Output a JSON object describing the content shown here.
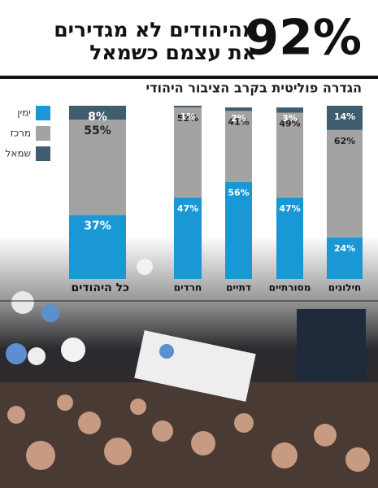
{
  "chart_data": {
    "type": "bar",
    "stacked": true,
    "title_figure": "92%",
    "title_lines": [
      "מהיהודים לא מגדירים",
      "את עצמם כשמאל"
    ],
    "subtitle": "הגדרה פוליטית בקרב הציבור היהודי",
    "categories": [
      "כל היהודים",
      "חרדים",
      "דתיים",
      "מסורתיים",
      "חילונים"
    ],
    "ylim": [
      0,
      100
    ],
    "series": [
      {
        "name": "ימין",
        "color": "#1a98d5",
        "values": [
          37,
          47,
          56,
          47,
          24
        ],
        "value_labels": [
          "37%",
          "47%",
          "56%",
          "47%",
          "24%"
        ]
      },
      {
        "name": "מרכז",
        "color": "#a3a3a3",
        "values": [
          55,
          52,
          41,
          49,
          62
        ],
        "value_labels": [
          "55%",
          "52%",
          "41%",
          "49%",
          "62%"
        ]
      },
      {
        "name": "שמאל",
        "color": "#3f5d6e",
        "values": [
          8,
          1,
          2,
          3,
          14
        ],
        "value_labels": [
          "8%",
          "1%",
          "2%",
          "3%",
          "14%"
        ]
      }
    ]
  }
}
